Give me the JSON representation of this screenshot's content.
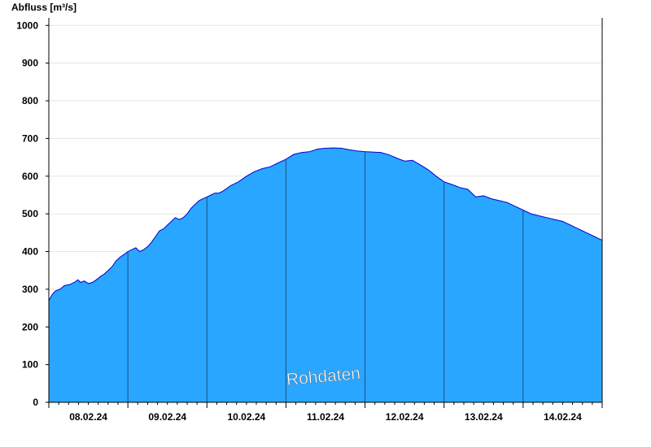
{
  "chart_data": {
    "type": "area",
    "ylabel": "Abfluss [m³/s]",
    "xlabel": "",
    "ylim": [
      0,
      1020
    ],
    "yticks": [
      0,
      100,
      200,
      300,
      400,
      500,
      600,
      700,
      800,
      900,
      1000
    ],
    "day_labels": [
      "08.02.24",
      "09.02.24",
      "10.02.24",
      "11.02.24",
      "12.02.24",
      "13.02.24",
      "14.02.24"
    ],
    "xlim_days": [
      0,
      7
    ],
    "watermark": "Rohdaten",
    "grid": "horizontal",
    "colors": {
      "fill": "#29a6ff",
      "line": "#0000cc",
      "grid": "#e6e6e6",
      "divider": "#1a4f80"
    },
    "series": [
      {
        "x_days": [
          0.0,
          0.04,
          0.08,
          0.14,
          0.2,
          0.26,
          0.32,
          0.37,
          0.4,
          0.45,
          0.5,
          0.55,
          0.6,
          0.66,
          0.7,
          0.75,
          0.8,
          0.85,
          0.9,
          0.95,
          1.0,
          1.05,
          1.1,
          1.15,
          1.2,
          1.26,
          1.3,
          1.35,
          1.4,
          1.45,
          1.5,
          1.55,
          1.6,
          1.65,
          1.7,
          1.75,
          1.8,
          1.85,
          1.9,
          1.95,
          2.0,
          2.05,
          2.1,
          2.15,
          2.2,
          2.3,
          2.4,
          2.5,
          2.6,
          2.7,
          2.8,
          2.9,
          3.0,
          3.1,
          3.2,
          3.3,
          3.4,
          3.5,
          3.6,
          3.7,
          3.8,
          3.9,
          4.0,
          4.1,
          4.2,
          4.3,
          4.4,
          4.5,
          4.6,
          4.7,
          4.8,
          4.9,
          5.0,
          5.1,
          5.2,
          5.3,
          5.4,
          5.5,
          5.6,
          5.7,
          5.8,
          5.9,
          6.0,
          6.1,
          6.2,
          6.3,
          6.4,
          6.5,
          6.55,
          6.6,
          6.65,
          6.7,
          6.75,
          6.8,
          6.85,
          6.9,
          6.95,
          7.0
        ],
        "values": [
          270,
          285,
          295,
          300,
          310,
          312,
          318,
          325,
          318,
          322,
          315,
          318,
          325,
          335,
          340,
          350,
          360,
          375,
          385,
          392,
          400,
          405,
          410,
          400,
          405,
          415,
          425,
          440,
          455,
          460,
          470,
          480,
          490,
          485,
          490,
          500,
          515,
          525,
          535,
          540,
          545,
          550,
          555,
          555,
          560,
          575,
          585,
          600,
          612,
          620,
          625,
          635,
          645,
          658,
          663,
          665,
          672,
          674,
          675,
          674,
          670,
          667,
          665,
          664,
          663,
          657,
          648,
          640,
          642,
          630,
          617,
          600,
          585,
          578,
          570,
          565,
          545,
          548,
          540,
          535,
          530,
          520,
          510,
          500,
          495,
          490,
          485,
          480,
          475,
          470,
          465,
          460,
          455,
          450,
          445,
          440,
          435,
          430
        ]
      }
    ]
  }
}
